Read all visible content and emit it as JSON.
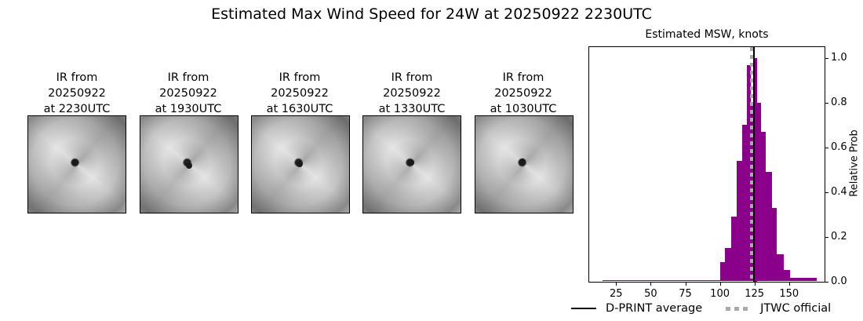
{
  "title": "Estimated Max Wind Speed for 24W at 20250922 2230UTC",
  "ir_panels": [
    {
      "line1": "IR from",
      "line2": "20250922",
      "line3": "at 2230UTC"
    },
    {
      "line1": "IR from",
      "line2": "20250922",
      "line3": "at 1930UTC"
    },
    {
      "line1": "IR from",
      "line2": "20250922",
      "line3": "at 1630UTC"
    },
    {
      "line1": "IR from",
      "line2": "20250922",
      "line3": "at 1330UTC"
    },
    {
      "line1": "IR from",
      "line2": "20250922",
      "line3": "at 1030UTC"
    }
  ],
  "legend": {
    "avg_label": "D-PRINT average",
    "official_label": "JTWC official"
  },
  "colors": {
    "bar": "#8b008b",
    "avg_line": "#000000",
    "official_line": "#aaaaaa"
  },
  "chart_data": {
    "type": "bar",
    "title": "Estimated MSW, knots",
    "xlabel": "",
    "ylabel": "Relative Prob",
    "xlim": [
      5,
      175
    ],
    "ylim": [
      0,
      1.05
    ],
    "xticks": [
      25,
      50,
      75,
      100,
      125,
      150
    ],
    "yticks": [
      0.0,
      0.2,
      0.4,
      0.6,
      0.8,
      1.0
    ],
    "ytick_labels": [
      "0.0",
      "0.2",
      "0.4",
      "0.6",
      "0.8",
      "1.0"
    ],
    "yaxis_position": "right",
    "grid": false,
    "bins": [
      {
        "x0": 15.2,
        "x1": 100.2,
        "value": 0.007
      },
      {
        "x0": 100.2,
        "x1": 103.6,
        "value": 0.085
      },
      {
        "x0": 103.6,
        "x1": 108.1,
        "value": 0.15
      },
      {
        "x0": 108.1,
        "x1": 112.1,
        "value": 0.29
      },
      {
        "x0": 112.1,
        "x1": 116.1,
        "value": 0.54
      },
      {
        "x0": 116.1,
        "x1": 119.5,
        "value": 0.7
      },
      {
        "x0": 119.5,
        "x1": 122.3,
        "value": 0.97
      },
      {
        "x0": 122.3,
        "x1": 124.6,
        "value": 0.8
      },
      {
        "x0": 124.6,
        "x1": 126.9,
        "value": 1.0
      },
      {
        "x0": 126.9,
        "x1": 129.7,
        "value": 0.8
      },
      {
        "x0": 129.7,
        "x1": 133.1,
        "value": 0.67
      },
      {
        "x0": 133.1,
        "x1": 137.6,
        "value": 0.49
      },
      {
        "x0": 137.6,
        "x1": 141.0,
        "value": 0.33
      },
      {
        "x0": 141.0,
        "x1": 146.1,
        "value": 0.12
      },
      {
        "x0": 146.1,
        "x1": 150.7,
        "value": 0.05
      },
      {
        "x0": 150.7,
        "x1": 170.0,
        "value": 0.015
      }
    ],
    "vlines": [
      {
        "name": "D-PRINT average",
        "x": 124.6,
        "style": "solid",
        "color": "#000000"
      },
      {
        "name": "JTWC official",
        "x": 123,
        "style": "dotted",
        "color": "#aaaaaa"
      }
    ],
    "legend_position": "bottom"
  }
}
